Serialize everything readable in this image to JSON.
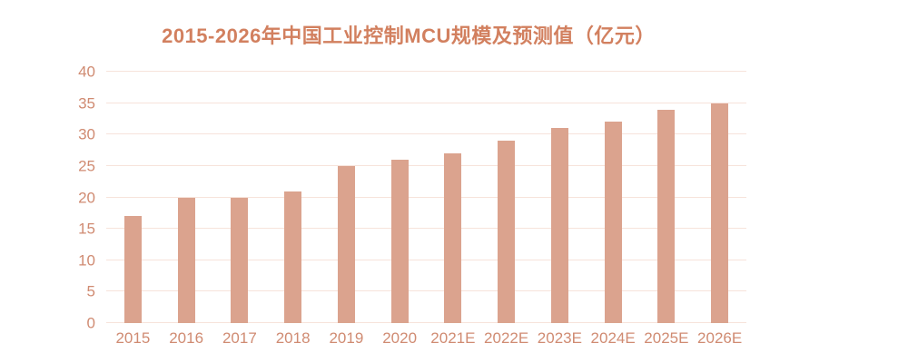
{
  "title": "2015-2026年中国工业控制MCU规模及预测值（亿元）",
  "colors": {
    "bar": "#DBA38E",
    "grid": "#F7E3DB",
    "axis_text": "#D08B72",
    "title_text": "#D2805F",
    "background": "#FFFFFF"
  },
  "chart_data": {
    "type": "bar",
    "title": "2015-2026年中国工业控制MCU规模及预测值（亿元）",
    "categories": [
      "2015",
      "2016",
      "2017",
      "2018",
      "2019",
      "2020",
      "2021E",
      "2022E",
      "2023E",
      "2024E",
      "2025E",
      "2026E"
    ],
    "values": [
      17,
      20,
      20,
      21,
      25,
      26,
      27,
      29,
      31,
      32,
      34,
      35
    ],
    "xlabel": "",
    "ylabel": "",
    "ylim": [
      0,
      40
    ],
    "ytick_step": 5,
    "yticks": [
      0,
      5,
      10,
      15,
      20,
      25,
      30,
      35,
      40
    ],
    "grid": true,
    "legend": false,
    "data_labels": false
  }
}
